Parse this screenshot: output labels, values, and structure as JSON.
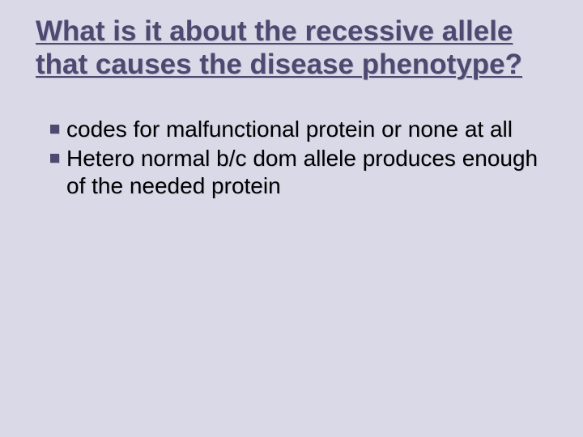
{
  "slide": {
    "title": "What is it about the recessive allele that causes the disease phenotype?",
    "bullets": [
      "codes for  malfunctional protein or none at all",
      "Hetero normal b/c dom allele produces enough of the needed protein"
    ],
    "colors": {
      "background": "#dad9e8",
      "title_color": "#4e4970",
      "body_color": "#000000",
      "bullet_marker": "#4e4970",
      "shadow_light": "#c6c4d6"
    },
    "typography": {
      "title_fontsize": 35,
      "title_weight": "bold",
      "body_fontsize": 28,
      "font_family": "Arial"
    }
  }
}
